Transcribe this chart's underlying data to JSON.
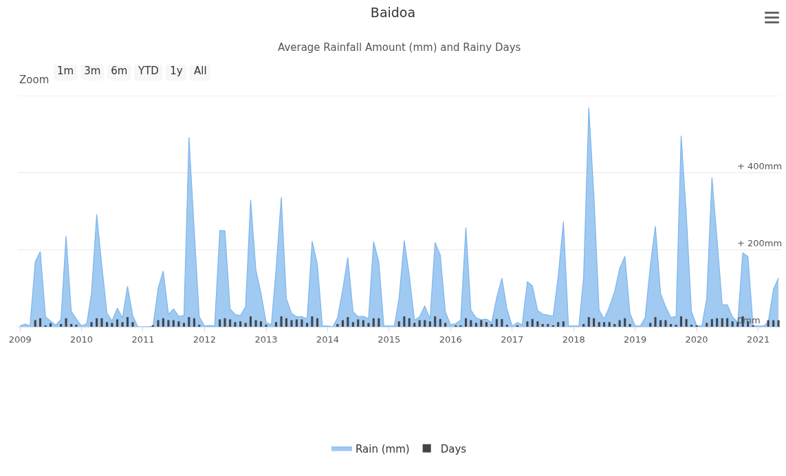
{
  "chart_data": {
    "type": "area",
    "title": "Baidoa",
    "subtitle": "Average Rainfall Amount (mm) and Rainy Days",
    "annotations": [
      "Zoom",
      "1m",
      "3m",
      "6m",
      "YTD",
      "1y",
      "All"
    ],
    "x": [
      "2009-01",
      "2009-02",
      "2009-03",
      "2009-04",
      "2009-05",
      "2009-06",
      "2009-07",
      "2009-08",
      "2009-09",
      "2009-10",
      "2009-11",
      "2009-12",
      "2010-01",
      "2010-02",
      "2010-03",
      "2010-04",
      "2010-05",
      "2010-06",
      "2010-07",
      "2010-08",
      "2010-09",
      "2010-10",
      "2010-11",
      "2010-12",
      "2011-01",
      "2011-02",
      "2011-03",
      "2011-04",
      "2011-05",
      "2011-06",
      "2011-07",
      "2011-08",
      "2011-09",
      "2011-10",
      "2011-11",
      "2011-12",
      "2012-01",
      "2012-02",
      "2012-03",
      "2012-04",
      "2012-05",
      "2012-06",
      "2012-07",
      "2012-08",
      "2012-09",
      "2012-10",
      "2012-11",
      "2012-12",
      "2013-01",
      "2013-02",
      "2013-03",
      "2013-04",
      "2013-05",
      "2013-06",
      "2013-07",
      "2013-08",
      "2013-09",
      "2013-10",
      "2013-11",
      "2013-12",
      "2014-01",
      "2014-02",
      "2014-03",
      "2014-04",
      "2014-05",
      "2014-06",
      "2014-07",
      "2014-08",
      "2014-09",
      "2014-10",
      "2014-11",
      "2014-12",
      "2015-01",
      "2015-02",
      "2015-03",
      "2015-04",
      "2015-05",
      "2015-06",
      "2015-07",
      "2015-08",
      "2015-09",
      "2015-10",
      "2015-11",
      "2015-12",
      "2016-01",
      "2016-02",
      "2016-03",
      "2016-04",
      "2016-05",
      "2016-06",
      "2016-07",
      "2016-08",
      "2016-09",
      "2016-10",
      "2016-11",
      "2016-12",
      "2017-01",
      "2017-02",
      "2017-03",
      "2017-04",
      "2017-05",
      "2017-06",
      "2017-07",
      "2017-08",
      "2017-09",
      "2017-10",
      "2017-11",
      "2017-12",
      "2018-01",
      "2018-02",
      "2018-03",
      "2018-04",
      "2018-05",
      "2018-06",
      "2018-07",
      "2018-08",
      "2018-09",
      "2018-10",
      "2018-11",
      "2018-12",
      "2019-01",
      "2019-02",
      "2019-03",
      "2019-04",
      "2019-05",
      "2019-06",
      "2019-07",
      "2019-08",
      "2019-09",
      "2019-10",
      "2019-11",
      "2019-12",
      "2020-01",
      "2020-02",
      "2020-03",
      "2020-04",
      "2020-05",
      "2020-06",
      "2020-07",
      "2020-08",
      "2020-09",
      "2020-10",
      "2020-11",
      "2020-12",
      "2021-01",
      "2021-02",
      "2021-03",
      "2021-04",
      "2021-05"
    ],
    "series": [
      {
        "name": "Rain (mm)",
        "color": "#7cb5ec",
        "values": [
          2,
          7,
          2,
          168,
          195,
          26,
          15,
          4,
          20,
          235,
          40,
          20,
          2,
          8,
          87,
          292,
          160,
          35,
          15,
          48,
          23,
          105,
          29,
          0,
          0,
          0,
          2,
          100,
          145,
          32,
          46,
          27,
          29,
          492,
          250,
          26,
          2,
          3,
          2,
          250,
          249,
          46,
          32,
          29,
          52,
          330,
          148,
          88,
          11,
          5,
          150,
          336,
          73,
          35,
          26,
          26,
          21,
          222,
          163,
          2,
          2,
          0,
          23,
          97,
          180,
          39,
          26,
          27,
          21,
          221,
          168,
          2,
          2,
          2,
          73,
          224,
          133,
          17,
          26,
          54,
          20,
          219,
          186,
          39,
          5,
          8,
          17,
          258,
          43,
          23,
          18,
          20,
          11,
          76,
          126,
          46,
          2,
          11,
          5,
          117,
          106,
          42,
          33,
          30,
          27,
          130,
          273,
          2,
          2,
          2,
          130,
          569,
          340,
          43,
          20,
          52,
          91,
          151,
          183,
          35,
          2,
          2,
          23,
          157,
          261,
          86,
          52,
          24,
          27,
          496,
          290,
          40,
          3,
          2,
          73,
          387,
          228,
          57,
          57,
          26,
          11,
          192,
          182,
          2,
          2,
          2,
          12,
          97,
          127
        ]
      },
      {
        "name": "Days",
        "type": "bar",
        "color": "#434348",
        "values": [
          0,
          0,
          0,
          17,
          22,
          3,
          9,
          0,
          7,
          22,
          7,
          5,
          0,
          0,
          12,
          22,
          22,
          12,
          10,
          19,
          12,
          25,
          12,
          0,
          0,
          0,
          3,
          17,
          22,
          17,
          17,
          14,
          10,
          25,
          22,
          5,
          0,
          0,
          0,
          19,
          22,
          19,
          12,
          14,
          10,
          27,
          17,
          14,
          5,
          0,
          12,
          27,
          22,
          17,
          19,
          19,
          10,
          27,
          22,
          0,
          0,
          0,
          7,
          17,
          25,
          12,
          19,
          17,
          10,
          22,
          22,
          0,
          0,
          0,
          14,
          27,
          22,
          10,
          17,
          17,
          14,
          27,
          20,
          10,
          0,
          2,
          2,
          22,
          17,
          10,
          17,
          12,
          7,
          20,
          20,
          5,
          0,
          2,
          0,
          14,
          20,
          14,
          7,
          7,
          2,
          12,
          14,
          0,
          0,
          0,
          7,
          25,
          22,
          12,
          12,
          12,
          7,
          17,
          22,
          7,
          0,
          0,
          0,
          10,
          25,
          17,
          17,
          7,
          5,
          27,
          20,
          5,
          2,
          0,
          10,
          20,
          22,
          22,
          22,
          14,
          12,
          27,
          14,
          2,
          0,
          0,
          17,
          17,
          17
        ]
      }
    ],
    "xlim": [
      "2008-12-19",
      "2021-05-13"
    ],
    "xticks": [
      "2009",
      "2010",
      "2011",
      "2012",
      "2013",
      "2014",
      "2015",
      "2016",
      "2017",
      "2018",
      "2019",
      "2020",
      "2021"
    ],
    "ylim": [
      0,
      600
    ],
    "yticks": [
      {
        "value": 0,
        "label": "0mm"
      },
      {
        "value": 200,
        "label": "+ 200mm"
      },
      {
        "value": 400,
        "label": "+ 400mm"
      },
      {
        "value": 600,
        "label": null
      }
    ],
    "grid": "y",
    "legend": "bottom",
    "marker": "none"
  }
}
